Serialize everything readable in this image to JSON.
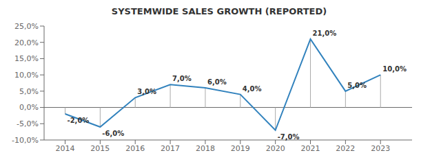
{
  "chart_data": {
    "type": "line",
    "title": "SYSTEMWIDE SALES GROWTH (REPORTED)",
    "x": [
      2014,
      2015,
      2016,
      2017,
      2018,
      2019,
      2020,
      2021,
      2022,
      2023
    ],
    "values": [
      -2.0,
      -6.0,
      3.0,
      7.0,
      6.0,
      4.0,
      -7.0,
      21.0,
      5.0,
      10.0
    ],
    "value_labels": [
      "-2,0%",
      "-6,0%",
      "3,0%",
      "7,0%",
      "6,0%",
      "4,0%",
      "-7,0%",
      "21,0%",
      "5,0%",
      "10,0%"
    ],
    "data_labels": true,
    "xlim": [
      2013.4,
      2023.9
    ],
    "xticks": [
      2014,
      2015,
      2016,
      2017,
      2018,
      2019,
      2020,
      2021,
      2022,
      2023
    ],
    "ylim": [
      -10,
      25
    ],
    "yticks": [
      {
        "value": -10,
        "label": "-10,0%"
      },
      {
        "value": -5,
        "label": "-5,0%"
      },
      {
        "value": 0,
        "label": "0,0%"
      },
      {
        "value": 5,
        "label": "5,0%"
      },
      {
        "value": 10,
        "label": "10,0%"
      },
      {
        "value": 15,
        "label": "15,0%"
      },
      {
        "value": 20,
        "label": "20,0%"
      },
      {
        "value": 25,
        "label": "25,0%"
      }
    ],
    "grid": false
  }
}
